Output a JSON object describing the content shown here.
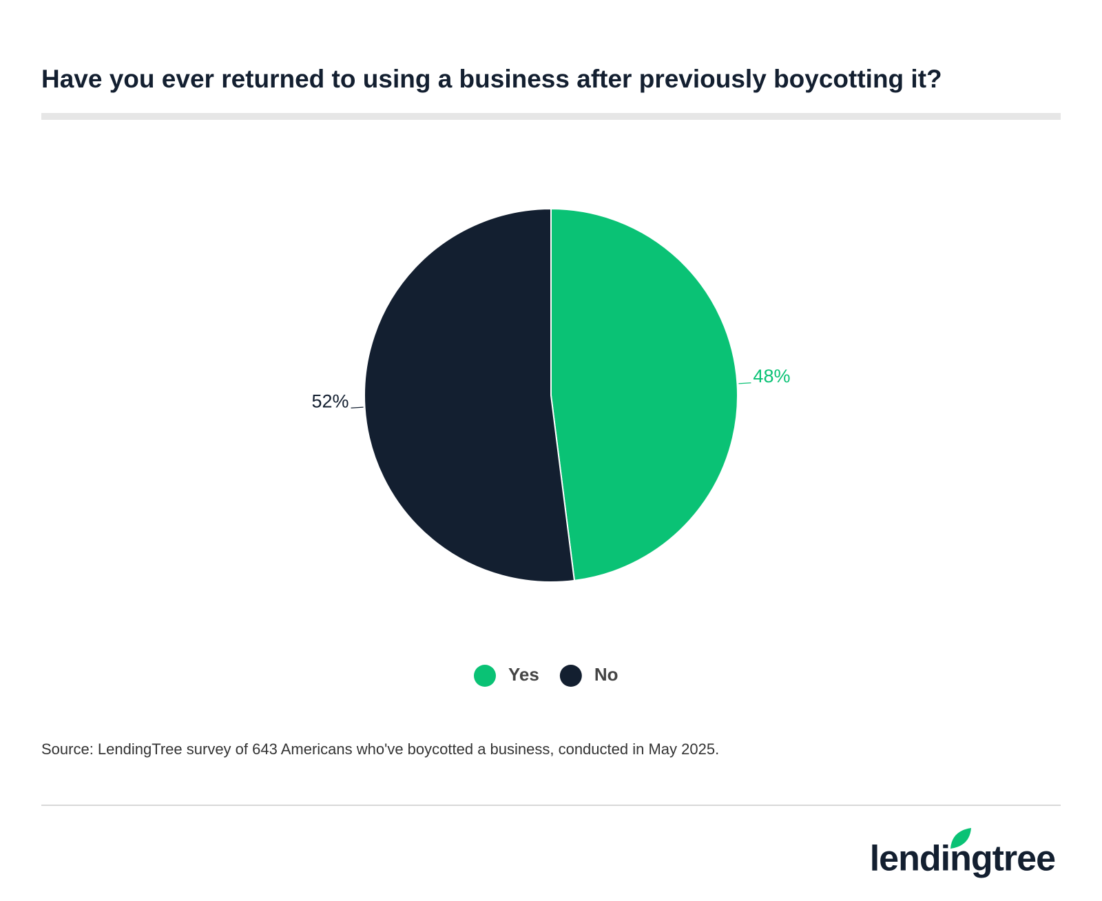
{
  "chart_data": {
    "type": "pie",
    "title": "Have you ever returned to using a business after previously boycotting it?",
    "categories": [
      "Yes",
      "No"
    ],
    "values": [
      48,
      52
    ],
    "value_labels": [
      "48%",
      "52%"
    ],
    "colors": [
      "#0ac275",
      "#131f30"
    ],
    "legend": "bottom",
    "source": "Source: LendingTree survey of 643 Americans who've boycotted a business, conducted in May 2025.",
    "brand": "lendingtree"
  }
}
